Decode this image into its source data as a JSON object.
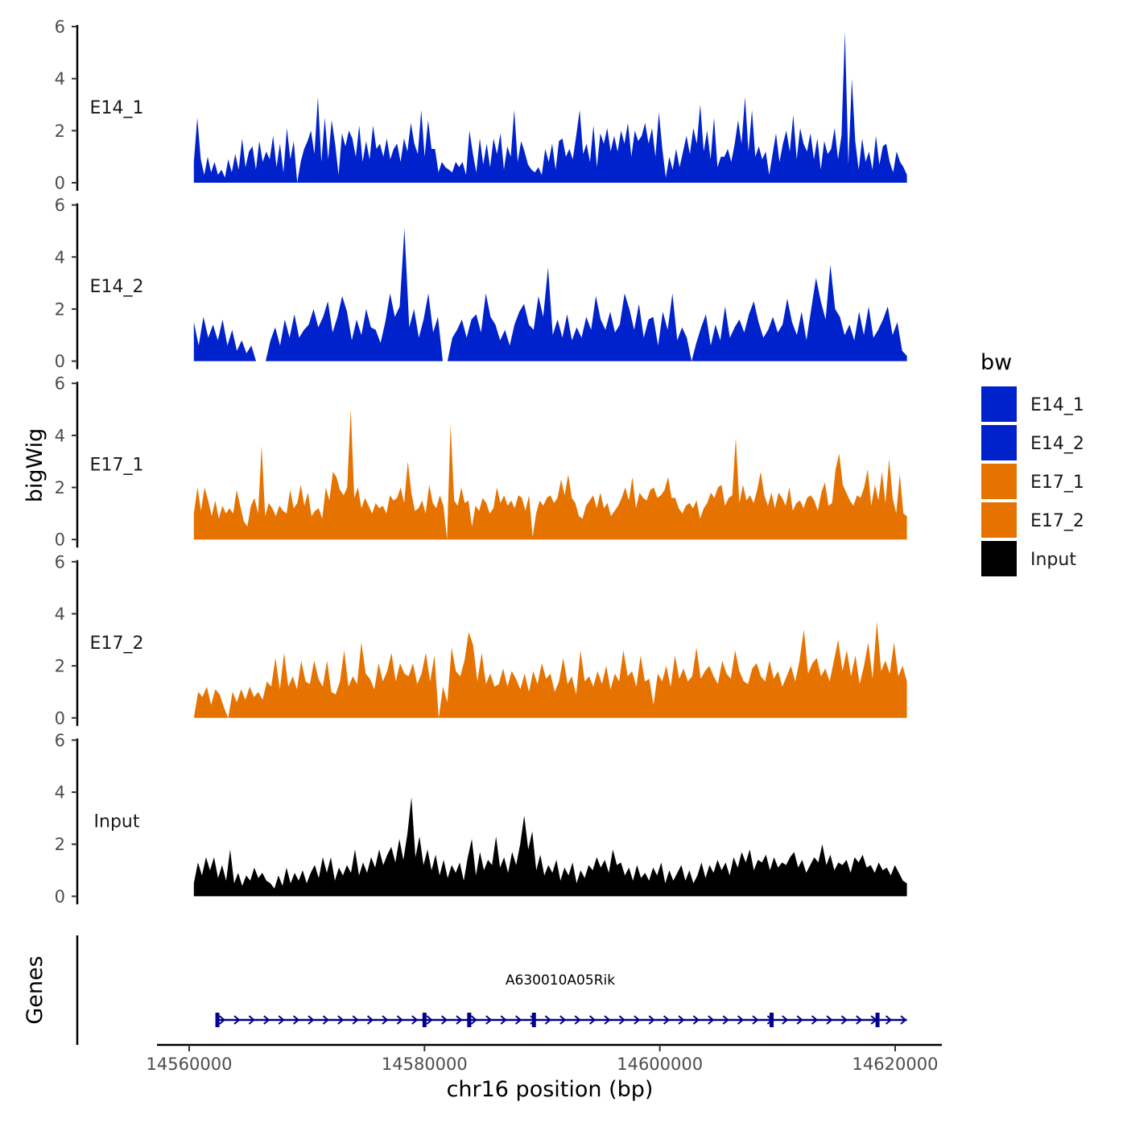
{
  "chart_data": {
    "type": "area",
    "ylabel": "bigWig",
    "xlabel": "chr16 position (bp)",
    "xlim": [
      14558000,
      14625000
    ],
    "x_ticks": [
      14560000,
      14580000,
      14600000,
      14620000
    ],
    "x_tick_labels": [
      "14560000",
      "14580000",
      "14600000",
      "14620000"
    ],
    "ylim": [
      0,
      6
    ],
    "y_ticks": [
      0,
      2,
      4,
      6
    ],
    "y_tick_labels": [
      "0",
      "2",
      "4",
      "6"
    ],
    "data_range": [
      14560400,
      14621000
    ],
    "series": [
      {
        "name": "E14_1",
        "color": "#0022CC",
        "values": [
          0.8,
          2.5,
          0.9,
          0.3,
          1.0,
          0.4,
          0.8,
          0.3,
          0.5,
          0.2,
          0.9,
          0.4,
          1.1,
          0.5,
          1.7,
          0.6,
          1.2,
          1.4,
          0.5,
          1.6,
          0.8,
          1.2,
          0.9,
          1.8,
          0.6,
          1.5,
          0.4,
          2.1,
          0.9,
          1.6,
          0.0,
          0.8,
          1.3,
          1.6,
          2.0,
          1.1,
          3.3,
          0.8,
          2.5,
          0.9,
          2.4,
          1.5,
          0.3,
          1.9,
          1.4,
          2.0,
          1.7,
          1.0,
          2.2,
          0.8,
          1.6,
          0.9,
          2.2,
          1.3,
          1.5,
          1.0,
          1.7,
          0.9,
          1.3,
          1.5,
          0.8,
          1.7,
          1.2,
          2.3,
          1.5,
          1.1,
          2.8,
          1.0,
          2.4,
          1.3,
          1.3,
          0.4,
          0.8,
          0.6,
          0.5,
          0.4,
          0.8,
          0.6,
          0.8,
          0.3,
          2.0,
          1.1,
          0.4,
          1.7,
          0.7,
          1.5,
          0.6,
          1.7,
          1.1,
          1.9,
          0.5,
          1.4,
          1.0,
          2.8,
          0.8,
          1.6,
          1.2,
          0.7,
          0.5,
          0.4,
          0.6,
          0.3,
          1.3,
          0.8,
          1.5,
          0.5,
          1.6,
          1.7,
          1.0,
          1.3,
          0.9,
          1.8,
          2.8,
          1.1,
          1.5,
          0.8,
          2.2,
          0.6,
          1.9,
          1.5,
          2.1,
          1.2,
          1.8,
          1.2,
          2.0,
          1.5,
          2.3,
          1.0,
          2.0,
          1.6,
          1.8,
          2.3,
          1.5,
          2.1,
          1.0,
          2.7,
          1.3,
          0.2,
          1.0,
          0.5,
          1.3,
          0.6,
          1.2,
          1.8,
          1.1,
          2.1,
          1.5,
          3.0,
          1.2,
          2.0,
          0.9,
          2.5,
          0.6,
          1.0,
          1.0,
          1.3,
          0.8,
          1.5,
          2.4,
          1.5,
          3.3,
          1.2,
          2.8,
          1.0,
          1.4,
          0.9,
          1.2,
          0.3,
          1.1,
          1.9,
          0.8,
          1.5,
          2.0,
          1.2,
          2.6,
          0.9,
          2.1,
          1.5,
          1.2,
          1.9,
          0.9,
          1.7,
          0.5,
          1.6,
          1.1,
          1.3,
          2.1,
          0.9,
          1.8,
          5.8,
          0.7,
          4.0,
          1.6,
          0.5,
          1.7,
          0.8,
          1.2,
          0.5,
          1.8,
          0.7,
          1.4,
          1.5,
          0.8,
          0.4,
          1.2,
          0.8,
          0.6,
          0.3
        ],
        "label": "E14_1"
      },
      {
        "name": "E14_2",
        "color": "#0022CC",
        "values": [
          1.5,
          0.6,
          1.7,
          0.9,
          1.4,
          0.8,
          1.6,
          0.6,
          1.2,
          0.4,
          0.8,
          0.3,
          0.6,
          0.0,
          0.0,
          0.0,
          0.8,
          1.3,
          0.6,
          1.6,
          0.9,
          1.8,
          0.9,
          1.2,
          1.4,
          2.0,
          1.3,
          1.7,
          2.3,
          1.1,
          1.7,
          2.5,
          1.9,
          0.8,
          1.6,
          1.0,
          2.0,
          1.3,
          1.2,
          0.7,
          1.5,
          2.6,
          1.7,
          2.1,
          5.1,
          1.3,
          2.0,
          0.9,
          1.6,
          2.6,
          1.1,
          1.7,
          0.0,
          0.0,
          0.9,
          1.2,
          1.6,
          0.9,
          1.6,
          1.8,
          1.1,
          2.6,
          1.7,
          1.4,
          0.8,
          1.2,
          0.6,
          1.4,
          1.9,
          2.2,
          1.4,
          1.2,
          2.5,
          1.7,
          3.6,
          1.0,
          1.6,
          0.9,
          1.8,
          0.8,
          1.3,
          0.9,
          1.7,
          1.2,
          2.5,
          1.6,
          1.2,
          1.9,
          1.1,
          1.4,
          2.6,
          2.0,
          1.2,
          2.2,
          0.9,
          1.6,
          1.7,
          0.6,
          1.9,
          1.2,
          2.6,
          0.8,
          1.3,
          0.9,
          0.0,
          0.7,
          1.3,
          1.8,
          0.6,
          1.4,
          0.8,
          2.1,
          0.9,
          1.3,
          1.6,
          1.1,
          1.8,
          2.3,
          1.5,
          0.9,
          1.2,
          1.7,
          1.1,
          1.4,
          2.4,
          1.5,
          1.0,
          1.9,
          0.8,
          2.0,
          3.2,
          2.3,
          1.6,
          3.7,
          2.0,
          1.7,
          1.0,
          1.4,
          0.8,
          1.9,
          1.0,
          2.1,
          0.9,
          1.2,
          1.6,
          2.1,
          1.0,
          1.5,
          0.4,
          0.2
        ],
        "label": "E14_2"
      },
      {
        "name": "E17_1",
        "color": "#E67300",
        "values": [
          1.0,
          2.0,
          1.1,
          2.0,
          1.5,
          0.9,
          1.5,
          0.8,
          1.3,
          1.0,
          1.2,
          1.0,
          1.9,
          1.3,
          0.7,
          0.5,
          1.3,
          1.6,
          1.0,
          3.6,
          0.9,
          1.4,
          1.2,
          0.9,
          1.3,
          1.1,
          1.0,
          1.9,
          1.2,
          1.4,
          2.1,
          1.3,
          1.8,
          0.9,
          1.1,
          1.2,
          0.8,
          2.0,
          1.5,
          2.6,
          2.4,
          1.9,
          1.7,
          2.0,
          5.0,
          1.6,
          2.0,
          1.2,
          1.6,
          1.3,
          1.0,
          1.4,
          1.2,
          1.3,
          1.0,
          1.7,
          1.5,
          1.6,
          2.0,
          1.4,
          3.0,
          1.8,
          1.1,
          1.2,
          1.5,
          1.0,
          2.1,
          1.4,
          1.2,
          1.7,
          1.3,
          0.0,
          4.4,
          1.5,
          1.3,
          2.0,
          1.4,
          1.5,
          0.5,
          1.3,
          1.1,
          1.6,
          1.4,
          1.0,
          1.2,
          2.0,
          1.4,
          1.7,
          1.3,
          1.5,
          1.2,
          1.7,
          1.6,
          1.1,
          1.7,
          0.1,
          1.0,
          1.5,
          1.3,
          1.6,
          1.7,
          1.4,
          1.6,
          2.3,
          1.7,
          2.5,
          1.6,
          1.4,
          0.9,
          0.8,
          1.3,
          1.5,
          1.7,
          1.2,
          1.8,
          1.2,
          1.4,
          0.9,
          1.1,
          1.3,
          1.6,
          2.0,
          1.5,
          2.4,
          1.2,
          1.8,
          1.6,
          1.5,
          1.9,
          2.0,
          1.6,
          1.7,
          1.9,
          2.4,
          1.6,
          1.6,
          1.2,
          1.0,
          1.3,
          1.4,
          1.2,
          1.5,
          0.8,
          1.2,
          1.4,
          1.8,
          1.6,
          2.0,
          2.1,
          1.3,
          1.6,
          1.7,
          3.9,
          1.4,
          2.1,
          1.5,
          1.7,
          1.4,
          1.9,
          2.6,
          1.7,
          1.3,
          1.8,
          1.2,
          1.8,
          1.6,
          1.3,
          2.0,
          1.1,
          1.4,
          1.5,
          1.2,
          1.6,
          1.7,
          1.5,
          1.1,
          1.8,
          2.2,
          1.3,
          1.4,
          2.7,
          3.3,
          2.1,
          1.8,
          1.5,
          1.3,
          1.7,
          1.6,
          2.0,
          2.7,
          1.3,
          2.1,
          1.5,
          2.6,
          1.4,
          3.1,
          1.6,
          1.0,
          2.5,
          1.0,
          0.9
        ],
        "label": "E17_1"
      },
      {
        "name": "E17_2",
        "color": "#E67300",
        "values": [
          0.0,
          1.0,
          0.8,
          1.2,
          0.5,
          1.1,
          0.9,
          0.4,
          0.0,
          1.0,
          0.6,
          1.1,
          0.7,
          1.2,
          0.8,
          1.0,
          0.7,
          1.4,
          1.2,
          2.3,
          1.1,
          2.5,
          1.2,
          1.6,
          1.1,
          2.2,
          1.4,
          1.3,
          2.2,
          1.5,
          1.2,
          2.2,
          1.0,
          0.9,
          1.4,
          2.6,
          1.2,
          1.6,
          1.3,
          2.9,
          1.7,
          1.5,
          1.1,
          2.1,
          1.4,
          1.8,
          2.5,
          1.4,
          2.1,
          1.7,
          1.6,
          2.1,
          1.3,
          1.7,
          2.5,
          1.4,
          2.4,
          0.0,
          1.2,
          0.6,
          2.7,
          1.8,
          1.6,
          2.2,
          3.3,
          2.8,
          1.4,
          2.5,
          1.3,
          1.7,
          1.2,
          1.3,
          1.9,
          1.2,
          1.8,
          1.5,
          1.1,
          1.7,
          1.0,
          1.8,
          1.3,
          2.1,
          1.5,
          1.7,
          1.0,
          1.4,
          2.3,
          1.3,
          1.6,
          0.9,
          2.6,
          1.4,
          1.6,
          1.2,
          1.8,
          1.3,
          2.0,
          1.1,
          1.7,
          1.4,
          2.6,
          1.6,
          1.8,
          1.2,
          2.4,
          1.4,
          1.5,
          0.5,
          1.7,
          1.4,
          2.0,
          1.2,
          2.4,
          1.5,
          1.9,
          1.4,
          1.6,
          2.7,
          1.5,
          1.8,
          2.0,
          1.6,
          1.3,
          2.2,
          1.7,
          1.5,
          2.6,
          1.8,
          1.4,
          1.3,
          1.9,
          2.1,
          1.6,
          1.4,
          2.2,
          1.5,
          1.8,
          1.2,
          1.6,
          2.0,
          1.4,
          2.2,
          3.4,
          1.7,
          2.1,
          2.3,
          1.6,
          1.9,
          1.4,
          2.2,
          3.0,
          1.8,
          2.6,
          1.6,
          2.4,
          1.3,
          2.0,
          2.9,
          1.5,
          3.7,
          1.8,
          2.2,
          1.7,
          2.9,
          1.6,
          2.0,
          1.4
        ],
        "label": "E17_2"
      },
      {
        "name": "Input",
        "color": "#000000",
        "values": [
          0.5,
          1.3,
          0.8,
          1.5,
          1.0,
          1.5,
          0.7,
          1.2,
          0.6,
          1.8,
          0.5,
          0.9,
          0.4,
          0.8,
          0.6,
          1.1,
          0.7,
          0.9,
          0.6,
          0.5,
          0.3,
          0.8,
          0.4,
          1.1,
          0.5,
          0.9,
          0.6,
          1.0,
          0.5,
          0.9,
          1.2,
          0.7,
          1.5,
          0.9,
          1.5,
          0.6,
          1.1,
          0.8,
          1.2,
          0.9,
          1.8,
          0.8,
          1.3,
          0.9,
          1.5,
          1.1,
          1.8,
          1.2,
          1.6,
          1.9,
          1.3,
          2.2,
          1.4,
          2.4,
          3.8,
          1.5,
          2.3,
          1.2,
          1.8,
          1.0,
          1.6,
          0.8,
          1.4,
          0.7,
          1.2,
          0.9,
          1.3,
          0.6,
          1.5,
          2.2,
          0.8,
          1.7,
          1.0,
          1.4,
          1.2,
          2.3,
          1.1,
          1.5,
          0.9,
          1.7,
          1.2,
          2.0,
          3.1,
          1.8,
          2.5,
          1.0,
          1.6,
          0.8,
          1.2,
          0.9,
          1.4,
          0.6,
          1.1,
          0.8,
          1.3,
          0.5,
          1.0,
          0.7,
          1.2,
          1.0,
          1.5,
          1.1,
          1.4,
          0.9,
          1.8,
          1.2,
          1.3,
          0.8,
          1.1,
          0.6,
          1.2,
          0.7,
          0.9,
          0.6,
          1.1,
          0.8,
          1.3,
          0.5,
          1.0,
          0.6,
          0.9,
          1.2,
          0.6,
          1.0,
          0.5,
          0.8,
          1.3,
          0.7,
          1.2,
          0.9,
          1.4,
          1.0,
          1.3,
          0.8,
          1.5,
          1.1,
          1.7,
          1.3,
          1.8,
          1.0,
          1.4,
          1.3,
          1.6,
          1.0,
          1.5,
          1.1,
          1.3,
          1.2,
          1.5,
          1.7,
          1.1,
          1.4,
          0.9,
          1.2,
          1.5,
          1.3,
          2.0,
          1.2,
          1.6,
          1.0,
          1.3,
          1.2,
          1.4,
          0.9,
          1.5,
          1.3,
          1.6,
          1.1,
          1.2,
          0.9,
          1.3,
          1.0,
          1.1,
          0.8,
          1.2,
          0.9,
          0.6,
          0.5
        ],
        "label": "Input"
      }
    ],
    "legend": {
      "title": "bw",
      "items": [
        {
          "label": "E14_1",
          "color": "#0022CC"
        },
        {
          "label": "E14_2",
          "color": "#0022CC"
        },
        {
          "label": "E17_1",
          "color": "#E67300"
        },
        {
          "label": "E17_2",
          "color": "#E67300"
        },
        {
          "label": "Input",
          "color": "#000000"
        }
      ]
    },
    "genes": {
      "title": "Genes",
      "gene_name": "A630010A05Rik",
      "color": "#00008B",
      "start": 14562300,
      "end": 14621000,
      "strand": "+",
      "exons": [
        14562400,
        14580000,
        14583800,
        14589300,
        14609500,
        14618500
      ]
    }
  }
}
